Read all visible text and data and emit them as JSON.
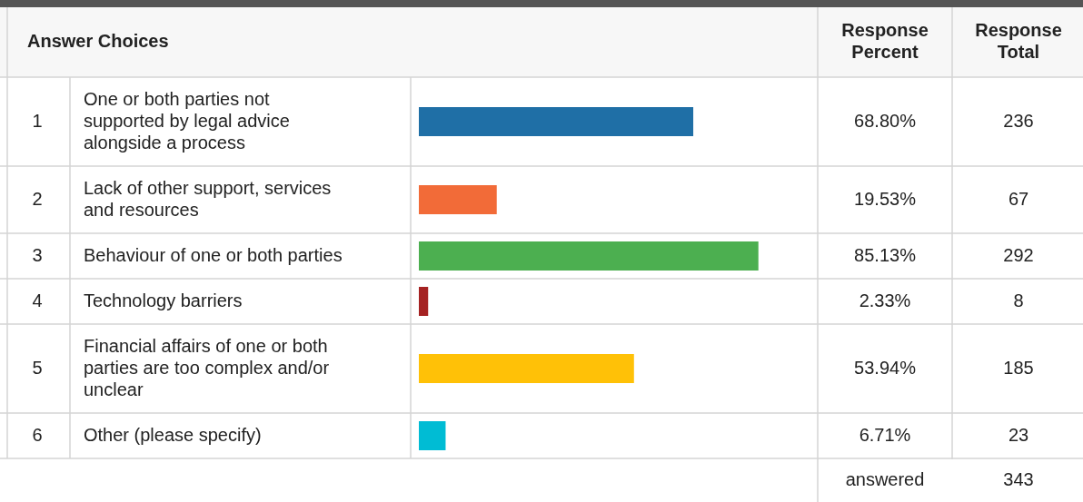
{
  "chart_data": {
    "type": "bar",
    "orientation": "horizontal",
    "categories": [
      "One or both parties not supported by legal advice alongside a process",
      "Lack of other support, services and resources",
      "Behaviour of one or both parties",
      "Technology barriers",
      "Financial affairs of one or both parties are too complex and/or unclear",
      "Other (please specify)"
    ],
    "values": [
      68.8,
      19.53,
      85.13,
      2.33,
      53.94,
      6.71
    ],
    "value_labels": [
      "68.80%",
      "19.53%",
      "85.13%",
      "2.33%",
      "53.94%",
      "6.71%"
    ],
    "colors": [
      "#1f6fa6",
      "#f26b38",
      "#4caf50",
      "#a52222",
      "#ffc107",
      "#00bcd4"
    ],
    "xlim": [
      0,
      100
    ],
    "tick_labels": false,
    "annotations": [
      "Answer Choices",
      "Response Percent",
      "Response Total",
      "1",
      "2",
      "3",
      "4",
      "5",
      "6",
      "236",
      "67",
      "292",
      "8",
      "185",
      "23",
      "answered",
      "343"
    ]
  }
}
